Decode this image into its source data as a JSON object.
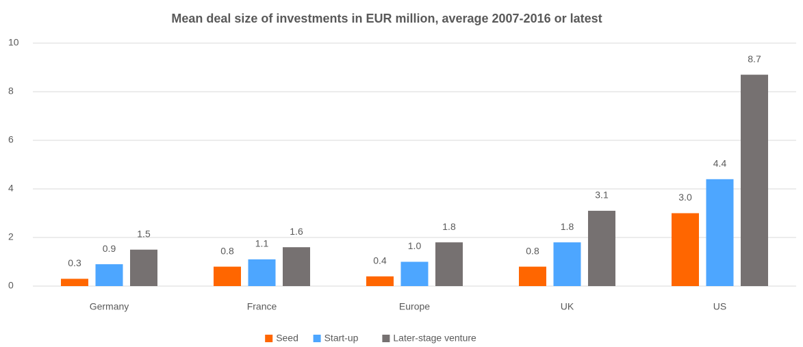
{
  "chart_data": {
    "type": "bar",
    "title": "Mean deal size of investments in EUR million, average 2007-2016 or latest",
    "categories": [
      "Germany",
      "France",
      "Europe",
      "UK",
      "US"
    ],
    "series": [
      {
        "name": "Seed",
        "color": "#ff6600",
        "values": [
          0.3,
          0.8,
          0.4,
          0.8,
          3.0
        ],
        "value_labels": [
          "0.3",
          "0.8",
          "0.4",
          "0.8",
          "3.0"
        ]
      },
      {
        "name": "Start-up",
        "color": "#4da6ff",
        "values": [
          0.9,
          1.1,
          1.0,
          1.8,
          4.4
        ],
        "value_labels": [
          "0.9",
          "1.1",
          "1.0",
          "1.8",
          "4.4"
        ]
      },
      {
        "name": "Later-stage venture",
        "color": "#767171",
        "values": [
          1.5,
          1.6,
          1.8,
          3.1,
          8.7
        ],
        "value_labels": [
          "1.5",
          "1.6",
          "1.8",
          "3.1",
          "8.7"
        ]
      }
    ],
    "ylim": [
      0,
      10
    ],
    "yticks": [
      0,
      2,
      4,
      6,
      8,
      10
    ],
    "grid": true,
    "legend": "bottom"
  }
}
